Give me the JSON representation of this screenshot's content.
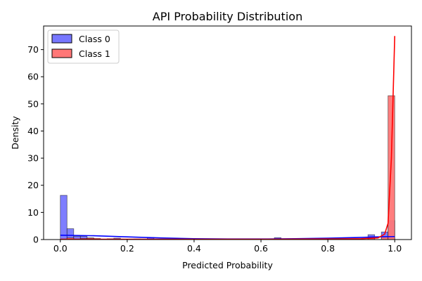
{
  "chart_data": {
    "type": "histogram",
    "title": "API Probability Distribution",
    "xlabel": "Predicted Probability",
    "ylabel": "Density",
    "xlim": [
      -0.05,
      1.05
    ],
    "ylim": [
      0,
      78.7
    ],
    "xticks": [
      "0.0",
      "0.2",
      "0.4",
      "0.6",
      "0.8",
      "1.0"
    ],
    "xtick_values": [
      0.0,
      0.2,
      0.4,
      0.6,
      0.8,
      1.0
    ],
    "yticks": [
      "0",
      "10",
      "20",
      "30",
      "40",
      "50",
      "60",
      "70"
    ],
    "ytick_values": [
      0,
      10,
      20,
      30,
      40,
      50,
      60,
      70
    ],
    "grid": false,
    "legend_position": "upper-left",
    "bin_width": 0.02,
    "series": [
      {
        "name": "Class 0",
        "color": "#0000ff",
        "fill": "#7777ff",
        "bins": [
          {
            "x": 0.0,
            "value": 16.3
          },
          {
            "x": 0.02,
            "value": 4.0
          },
          {
            "x": 0.04,
            "value": 1.2
          },
          {
            "x": 0.06,
            "value": 1.2
          },
          {
            "x": 0.08,
            "value": 0.6
          },
          {
            "x": 0.16,
            "value": 0.5
          },
          {
            "x": 0.26,
            "value": 0.8
          },
          {
            "x": 0.64,
            "value": 0.7
          },
          {
            "x": 0.92,
            "value": 1.8
          },
          {
            "x": 0.96,
            "value": 2.8
          },
          {
            "x": 0.98,
            "value": 7.0
          }
        ],
        "kde": [
          [
            0.0,
            1.6
          ],
          [
            0.1,
            1.4
          ],
          [
            0.2,
            1.0
          ],
          [
            0.3,
            0.6
          ],
          [
            0.4,
            0.3
          ],
          [
            0.5,
            0.2
          ],
          [
            0.6,
            0.2
          ],
          [
            0.7,
            0.3
          ],
          [
            0.8,
            0.5
          ],
          [
            0.9,
            0.8
          ],
          [
            0.95,
            1.0
          ],
          [
            1.0,
            1.1
          ]
        ]
      },
      {
        "name": "Class 1",
        "color": "#ff0000",
        "fill": "#ff7777",
        "bins": [
          {
            "x": 0.02,
            "value": 0.6
          },
          {
            "x": 0.06,
            "value": 0.4
          },
          {
            "x": 0.08,
            "value": 0.5
          },
          {
            "x": 0.1,
            "value": 0.4
          },
          {
            "x": 0.14,
            "value": 0.3
          },
          {
            "x": 0.22,
            "value": 0.2
          },
          {
            "x": 0.92,
            "value": 0.6
          },
          {
            "x": 0.96,
            "value": 1.0
          },
          {
            "x": 0.98,
            "value": 53.0
          }
        ],
        "kde": [
          [
            0.0,
            0.1
          ],
          [
            0.2,
            0.1
          ],
          [
            0.4,
            0.1
          ],
          [
            0.6,
            0.1
          ],
          [
            0.8,
            0.2
          ],
          [
            0.9,
            0.3
          ],
          [
            0.95,
            0.6
          ],
          [
            0.97,
            2.0
          ],
          [
            0.98,
            6.0
          ],
          [
            0.99,
            30.0
          ],
          [
            1.0,
            75.0
          ]
        ]
      }
    ]
  }
}
